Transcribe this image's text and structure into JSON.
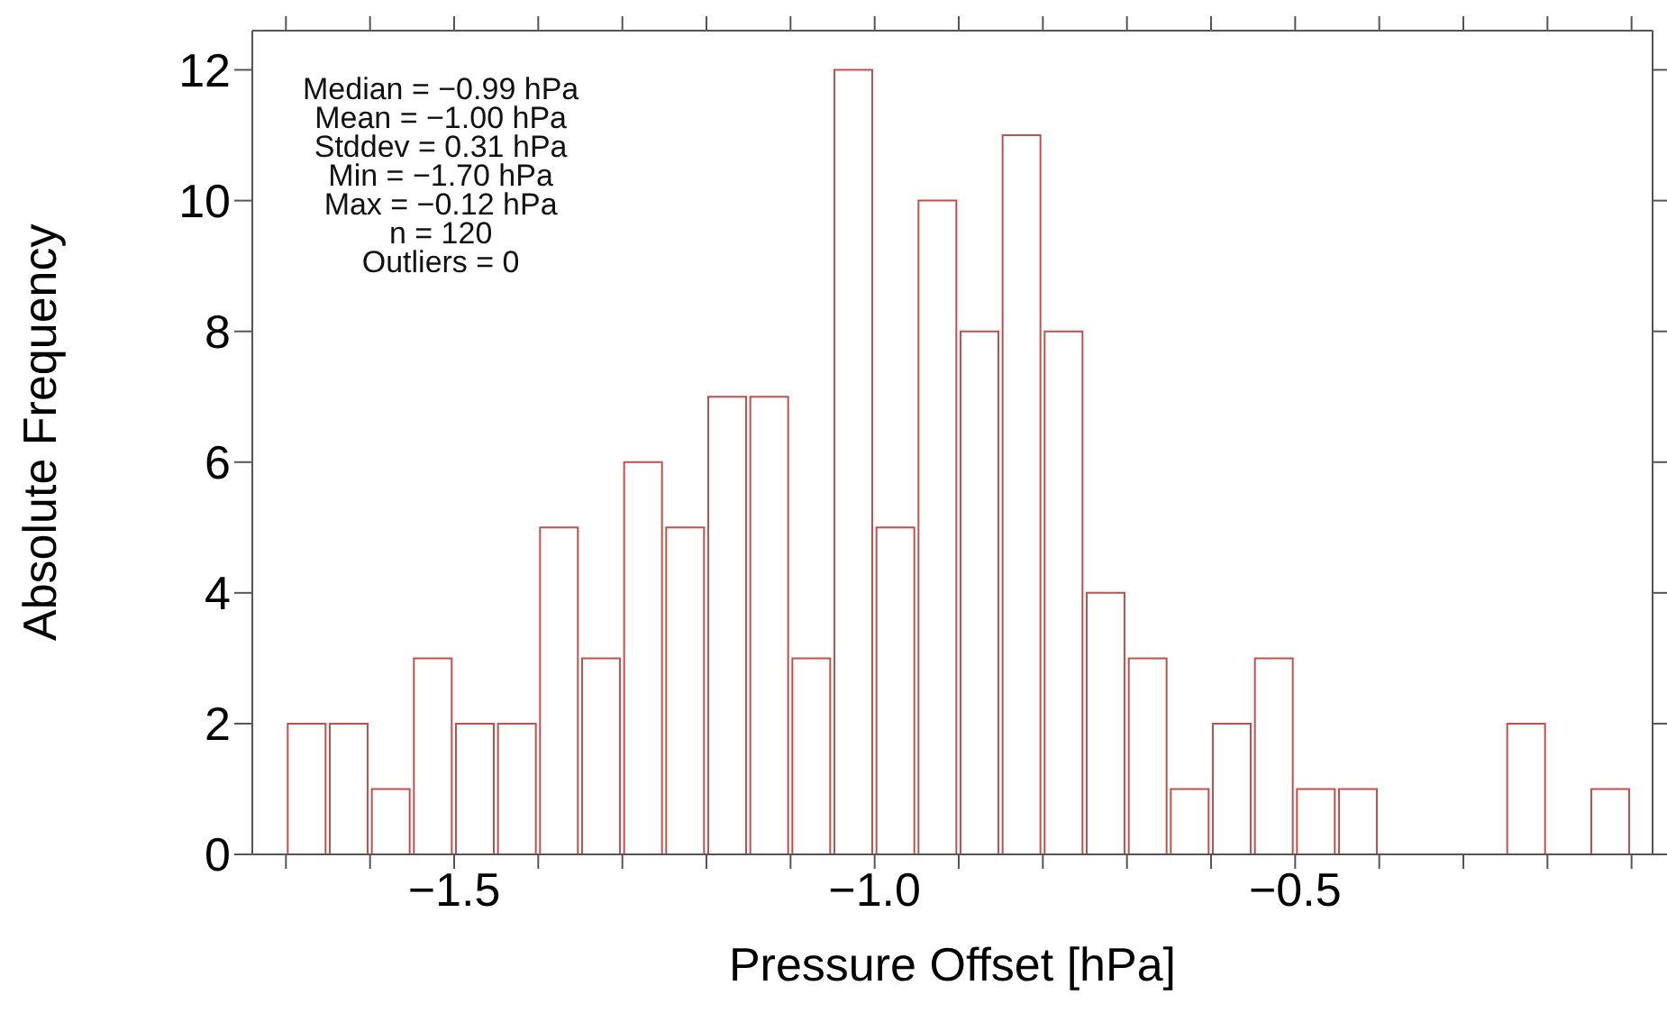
{
  "chart_data": {
    "type": "histogram",
    "xlabel": "Pressure Offset [hPa]",
    "ylabel": "Absolute Frequency",
    "bins": [
      -1.7,
      -1.65,
      -1.6,
      -1.55,
      -1.5,
      -1.45,
      -1.4,
      -1.35,
      -1.3,
      -1.25,
      -1.2,
      -1.15,
      -1.1,
      -1.05,
      -1.0,
      -0.95,
      -0.9,
      -0.85,
      -0.8,
      -0.75,
      -0.7,
      -0.65,
      -0.6,
      -0.55,
      -0.5,
      -0.45,
      -0.4,
      -0.35,
      -0.3,
      -0.25,
      -0.2,
      -0.15,
      -0.1
    ],
    "values": [
      2,
      2,
      1,
      3,
      2,
      2,
      5,
      3,
      6,
      5,
      7,
      7,
      3,
      12,
      5,
      10,
      8,
      11,
      8,
      4,
      3,
      1,
      2,
      3,
      1,
      1,
      0,
      0,
      0,
      2,
      0,
      1
    ],
    "color": "#c0504d",
    "xlim": [
      -1.74,
      -0.075
    ],
    "xticks": [
      {
        "value": -1.7,
        "label": null
      },
      {
        "value": -1.6,
        "label": null
      },
      {
        "value": -1.5,
        "label": "−1.5"
      },
      {
        "value": -1.4,
        "label": null
      },
      {
        "value": -1.3,
        "label": null
      },
      {
        "value": -1.2,
        "label": null
      },
      {
        "value": -1.1,
        "label": null
      },
      {
        "value": -1.0,
        "label": "−1.0"
      },
      {
        "value": -0.9,
        "label": null
      },
      {
        "value": -0.8,
        "label": null
      },
      {
        "value": -0.7,
        "label": null
      },
      {
        "value": -0.6,
        "label": null
      },
      {
        "value": -0.5,
        "label": "−0.5"
      },
      {
        "value": -0.4,
        "label": null
      },
      {
        "value": -0.3,
        "label": null
      },
      {
        "value": -0.2,
        "label": null
      },
      {
        "value": -0.1,
        "label": null
      }
    ],
    "ylim": [
      0,
      12.6
    ],
    "yticks": [
      0,
      2,
      4,
      6,
      8,
      10,
      12
    ],
    "grid": false,
    "legend": false,
    "annotations": [
      "Median = −0.99 hPa",
      "Mean = −1.00 hPa",
      "Stddev = 0.31 hPa",
      "Min = −1.70 hPa",
      "Max = −0.12 hPa",
      "n = 120",
      "Outliers = 0"
    ]
  }
}
